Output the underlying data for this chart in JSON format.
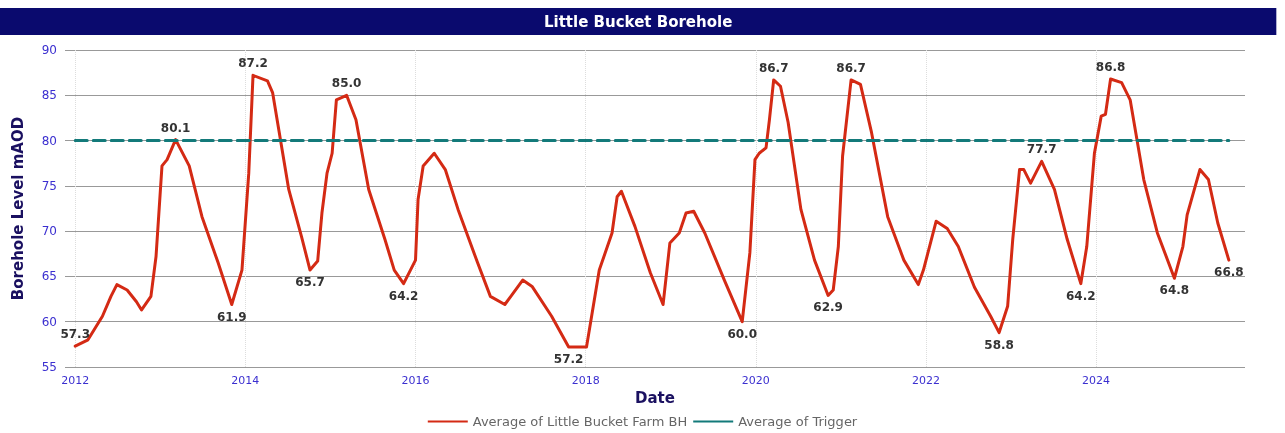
{
  "chart_data": {
    "type": "line",
    "title": "Little Bucket Borehole",
    "xlabel": "Date",
    "ylabel": "Borehole Level mAOD",
    "xlim": [
      2011.88,
      2025.75
    ],
    "xticks": [
      2012,
      2014,
      2016,
      2018,
      2020,
      2022,
      2024
    ],
    "ylim": [
      55,
      90
    ],
    "yticks": [
      55,
      60,
      65,
      70,
      75,
      80,
      85,
      90
    ],
    "grid": true,
    "legend": "bottom",
    "marker": "none",
    "series": [
      {
        "name": "Average of Little Bucket Farm BH",
        "color": "#d42a14",
        "line_style": "solid",
        "x": [
          2012.0,
          2012.15,
          2012.32,
          2012.42,
          2012.49,
          2012.61,
          2012.72,
          2012.78,
          2012.89,
          2012.95,
          2013.02,
          2013.08,
          2013.18,
          2013.34,
          2013.49,
          2013.68,
          2013.84,
          2013.96,
          2014.04,
          2014.09,
          2014.26,
          2014.32,
          2014.51,
          2014.66,
          2014.76,
          2014.85,
          2014.9,
          2014.96,
          2015.02,
          2015.07,
          2015.19,
          2015.3,
          2015.45,
          2015.64,
          2015.75,
          2015.86,
          2016.0,
          2016.03,
          2016.09,
          2016.22,
          2016.35,
          2016.5,
          2016.73,
          2016.88,
          2017.05,
          2017.26,
          2017.37,
          2017.6,
          2017.8,
          2018.01,
          2018.16,
          2018.31,
          2018.37,
          2018.42,
          2018.58,
          2018.76,
          2018.91,
          2018.99,
          2019.1,
          2019.18,
          2019.27,
          2019.4,
          2019.63,
          2019.84,
          2019.93,
          2019.99,
          2020.04,
          2020.12,
          2020.16,
          2020.21,
          2020.29,
          2020.38,
          2020.53,
          2020.69,
          2020.85,
          2020.91,
          2020.97,
          2021.02,
          2021.12,
          2021.23,
          2021.36,
          2021.55,
          2021.74,
          2021.91,
          2021.97,
          2022.12,
          2022.25,
          2022.38,
          2022.57,
          2022.76,
          2022.86,
          2022.96,
          2023.02,
          2023.1,
          2023.15,
          2023.23,
          2023.36,
          2023.51,
          2023.66,
          2023.82,
          2023.89,
          2023.98,
          2024.06,
          2024.11,
          2024.17,
          2024.3,
          2024.4,
          2024.56,
          2024.72,
          2024.92,
          2025.02,
          2025.07,
          2025.22,
          2025.32,
          2025.43,
          2025.56
        ],
        "values": [
          57.3,
          58.0,
          60.6,
          62.8,
          64.1,
          63.5,
          62.2,
          61.3,
          62.8,
          67.2,
          77.2,
          77.9,
          80.1,
          77.2,
          71.6,
          66.5,
          61.9,
          65.7,
          76.4,
          87.2,
          86.6,
          85.3,
          74.6,
          69.4,
          65.7,
          66.7,
          72.0,
          76.4,
          78.6,
          84.5,
          85.0,
          82.3,
          74.6,
          69.1,
          65.7,
          64.2,
          66.8,
          73.5,
          77.2,
          78.6,
          76.8,
          72.4,
          66.5,
          62.8,
          61.9,
          64.6,
          63.9,
          60.6,
          57.2,
          57.2,
          65.7,
          69.8,
          73.8,
          74.4,
          70.5,
          65.4,
          61.9,
          68.7,
          69.8,
          72.0,
          72.2,
          69.8,
          64.6,
          60.0,
          67.6,
          77.9,
          78.6,
          79.2,
          82.3,
          86.7,
          86.0,
          82.0,
          72.4,
          66.8,
          62.9,
          63.5,
          68.3,
          78.3,
          86.7,
          86.2,
          80.9,
          71.6,
          66.8,
          64.1,
          65.7,
          71.1,
          70.3,
          68.3,
          63.8,
          60.6,
          58.8,
          61.7,
          69.1,
          76.8,
          76.8,
          75.3,
          77.7,
          74.6,
          69.1,
          64.2,
          68.3,
          78.6,
          82.7,
          82.9,
          86.8,
          86.4,
          84.5,
          75.7,
          69.8,
          64.8,
          68.3,
          71.8,
          76.8,
          75.7,
          70.9,
          66.8
        ],
        "value_labels": [
          "57.3",
          null,
          null,
          null,
          null,
          null,
          null,
          null,
          null,
          null,
          null,
          null,
          "80.1",
          null,
          null,
          null,
          "61.9",
          null,
          null,
          "87.2",
          null,
          null,
          null,
          null,
          "65.7",
          null,
          null,
          null,
          null,
          null,
          "85.0",
          null,
          null,
          null,
          null,
          "64.2",
          null,
          null,
          null,
          null,
          null,
          null,
          null,
          null,
          null,
          null,
          null,
          null,
          "57.2",
          null,
          null,
          null,
          null,
          null,
          null,
          null,
          null,
          null,
          null,
          null,
          null,
          null,
          null,
          "60.0",
          null,
          null,
          null,
          null,
          null,
          "86.7",
          null,
          null,
          null,
          null,
          "62.9",
          null,
          null,
          null,
          "86.7",
          null,
          null,
          null,
          null,
          null,
          null,
          null,
          null,
          null,
          null,
          null,
          "58.8",
          null,
          null,
          null,
          null,
          null,
          "77.7",
          null,
          null,
          "64.2",
          null,
          null,
          null,
          null,
          "86.8",
          null,
          null,
          null,
          null,
          "64.8",
          null,
          null,
          null,
          null,
          null,
          "66.8"
        ]
      },
      {
        "name": "Average of Trigger",
        "color": "#137a7a",
        "line_style": "dashed",
        "x": [
          2012.0,
          2025.56
        ],
        "values": [
          80,
          80
        ]
      }
    ]
  }
}
